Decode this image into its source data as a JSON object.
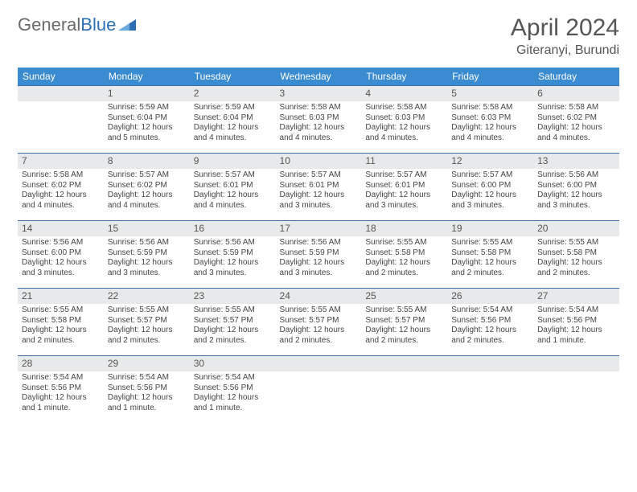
{
  "brand": {
    "word1": "General",
    "word2": "Blue"
  },
  "title": "April 2024",
  "location": "Giteranyi, Burundi",
  "colors": {
    "header_bg": "#3b8bd0",
    "header_text": "#ffffff",
    "daynum_bg": "#e8e9ea",
    "row_border": "#3b6fa5",
    "text": "#444444",
    "title_color": "#555555"
  },
  "day_headers": [
    "Sunday",
    "Monday",
    "Tuesday",
    "Wednesday",
    "Thursday",
    "Friday",
    "Saturday"
  ],
  "weeks": [
    [
      {
        "n": "",
        "lines": []
      },
      {
        "n": "1",
        "lines": [
          "Sunrise: 5:59 AM",
          "Sunset: 6:04 PM",
          "Daylight: 12 hours and 5 minutes."
        ]
      },
      {
        "n": "2",
        "lines": [
          "Sunrise: 5:59 AM",
          "Sunset: 6:04 PM",
          "Daylight: 12 hours and 4 minutes."
        ]
      },
      {
        "n": "3",
        "lines": [
          "Sunrise: 5:58 AM",
          "Sunset: 6:03 PM",
          "Daylight: 12 hours and 4 minutes."
        ]
      },
      {
        "n": "4",
        "lines": [
          "Sunrise: 5:58 AM",
          "Sunset: 6:03 PM",
          "Daylight: 12 hours and 4 minutes."
        ]
      },
      {
        "n": "5",
        "lines": [
          "Sunrise: 5:58 AM",
          "Sunset: 6:03 PM",
          "Daylight: 12 hours and 4 minutes."
        ]
      },
      {
        "n": "6",
        "lines": [
          "Sunrise: 5:58 AM",
          "Sunset: 6:02 PM",
          "Daylight: 12 hours and 4 minutes."
        ]
      }
    ],
    [
      {
        "n": "7",
        "lines": [
          "Sunrise: 5:58 AM",
          "Sunset: 6:02 PM",
          "Daylight: 12 hours and 4 minutes."
        ]
      },
      {
        "n": "8",
        "lines": [
          "Sunrise: 5:57 AM",
          "Sunset: 6:02 PM",
          "Daylight: 12 hours and 4 minutes."
        ]
      },
      {
        "n": "9",
        "lines": [
          "Sunrise: 5:57 AM",
          "Sunset: 6:01 PM",
          "Daylight: 12 hours and 4 minutes."
        ]
      },
      {
        "n": "10",
        "lines": [
          "Sunrise: 5:57 AM",
          "Sunset: 6:01 PM",
          "Daylight: 12 hours and 3 minutes."
        ]
      },
      {
        "n": "11",
        "lines": [
          "Sunrise: 5:57 AM",
          "Sunset: 6:01 PM",
          "Daylight: 12 hours and 3 minutes."
        ]
      },
      {
        "n": "12",
        "lines": [
          "Sunrise: 5:57 AM",
          "Sunset: 6:00 PM",
          "Daylight: 12 hours and 3 minutes."
        ]
      },
      {
        "n": "13",
        "lines": [
          "Sunrise: 5:56 AM",
          "Sunset: 6:00 PM",
          "Daylight: 12 hours and 3 minutes."
        ]
      }
    ],
    [
      {
        "n": "14",
        "lines": [
          "Sunrise: 5:56 AM",
          "Sunset: 6:00 PM",
          "Daylight: 12 hours and 3 minutes."
        ]
      },
      {
        "n": "15",
        "lines": [
          "Sunrise: 5:56 AM",
          "Sunset: 5:59 PM",
          "Daylight: 12 hours and 3 minutes."
        ]
      },
      {
        "n": "16",
        "lines": [
          "Sunrise: 5:56 AM",
          "Sunset: 5:59 PM",
          "Daylight: 12 hours and 3 minutes."
        ]
      },
      {
        "n": "17",
        "lines": [
          "Sunrise: 5:56 AM",
          "Sunset: 5:59 PM",
          "Daylight: 12 hours and 3 minutes."
        ]
      },
      {
        "n": "18",
        "lines": [
          "Sunrise: 5:55 AM",
          "Sunset: 5:58 PM",
          "Daylight: 12 hours and 2 minutes."
        ]
      },
      {
        "n": "19",
        "lines": [
          "Sunrise: 5:55 AM",
          "Sunset: 5:58 PM",
          "Daylight: 12 hours and 2 minutes."
        ]
      },
      {
        "n": "20",
        "lines": [
          "Sunrise: 5:55 AM",
          "Sunset: 5:58 PM",
          "Daylight: 12 hours and 2 minutes."
        ]
      }
    ],
    [
      {
        "n": "21",
        "lines": [
          "Sunrise: 5:55 AM",
          "Sunset: 5:58 PM",
          "Daylight: 12 hours and 2 minutes."
        ]
      },
      {
        "n": "22",
        "lines": [
          "Sunrise: 5:55 AM",
          "Sunset: 5:57 PM",
          "Daylight: 12 hours and 2 minutes."
        ]
      },
      {
        "n": "23",
        "lines": [
          "Sunrise: 5:55 AM",
          "Sunset: 5:57 PM",
          "Daylight: 12 hours and 2 minutes."
        ]
      },
      {
        "n": "24",
        "lines": [
          "Sunrise: 5:55 AM",
          "Sunset: 5:57 PM",
          "Daylight: 12 hours and 2 minutes."
        ]
      },
      {
        "n": "25",
        "lines": [
          "Sunrise: 5:55 AM",
          "Sunset: 5:57 PM",
          "Daylight: 12 hours and 2 minutes."
        ]
      },
      {
        "n": "26",
        "lines": [
          "Sunrise: 5:54 AM",
          "Sunset: 5:56 PM",
          "Daylight: 12 hours and 2 minutes."
        ]
      },
      {
        "n": "27",
        "lines": [
          "Sunrise: 5:54 AM",
          "Sunset: 5:56 PM",
          "Daylight: 12 hours and 1 minute."
        ]
      }
    ],
    [
      {
        "n": "28",
        "lines": [
          "Sunrise: 5:54 AM",
          "Sunset: 5:56 PM",
          "Daylight: 12 hours and 1 minute."
        ]
      },
      {
        "n": "29",
        "lines": [
          "Sunrise: 5:54 AM",
          "Sunset: 5:56 PM",
          "Daylight: 12 hours and 1 minute."
        ]
      },
      {
        "n": "30",
        "lines": [
          "Sunrise: 5:54 AM",
          "Sunset: 5:56 PM",
          "Daylight: 12 hours and 1 minute."
        ]
      },
      {
        "n": "",
        "lines": []
      },
      {
        "n": "",
        "lines": []
      },
      {
        "n": "",
        "lines": []
      },
      {
        "n": "",
        "lines": []
      }
    ]
  ]
}
